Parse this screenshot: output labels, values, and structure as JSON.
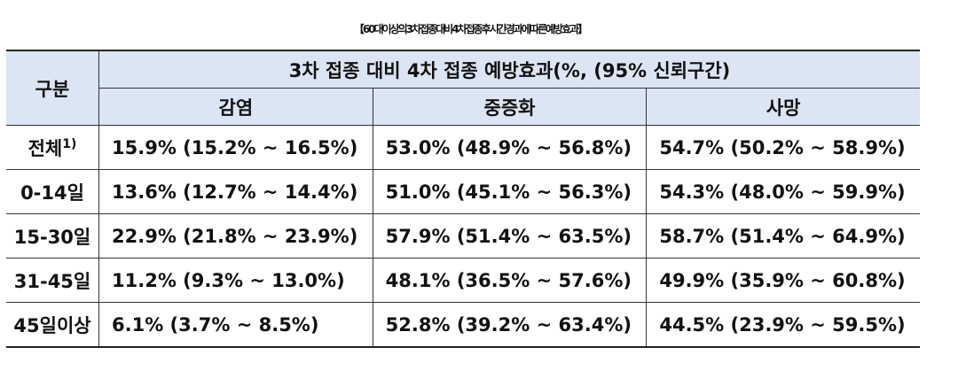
{
  "title": "【60대이상의3차접종대비4차접종후시간경과에따른예방효과】",
  "header": {
    "first": "구분",
    "group": "3차 접종 대비 4차 접종 예방효과(%, (95% 신뢰구간)",
    "columns": [
      "감염",
      "중증화",
      "사망"
    ]
  },
  "rows": [
    {
      "label": "전체",
      "note": "1)",
      "cells": [
        "15.9% (15.2% ~ 16.5%)",
        "53.0% (48.9% ~ 56.8%)",
        "54.7% (50.2% ~ 58.9%)"
      ]
    },
    {
      "label": "0-14일",
      "cells": [
        "13.6% (12.7% ~ 14.4%)",
        "51.0% (45.1% ~ 56.3%)",
        "54.3% (48.0% ~ 59.9%)"
      ]
    },
    {
      "label": "15-30일",
      "cells": [
        "22.9% (21.8% ~ 23.9%)",
        "57.9% (51.4% ~ 63.5%)",
        "58.7% (51.4% ~ 64.9%)"
      ]
    },
    {
      "label": "31-45일",
      "cells": [
        "11.2% (9.3% ~ 13.0%)",
        "48.1% (36.5% ~ 57.6%)",
        "49.9% (35.9% ~ 60.8%)"
      ]
    },
    {
      "label": "45일이상",
      "cells": [
        "6.1% (3.7% ~ 8.5%)",
        "52.8% (39.2% ~ 63.4%)",
        "44.5% (23.9% ~ 59.5%)"
      ]
    }
  ]
}
